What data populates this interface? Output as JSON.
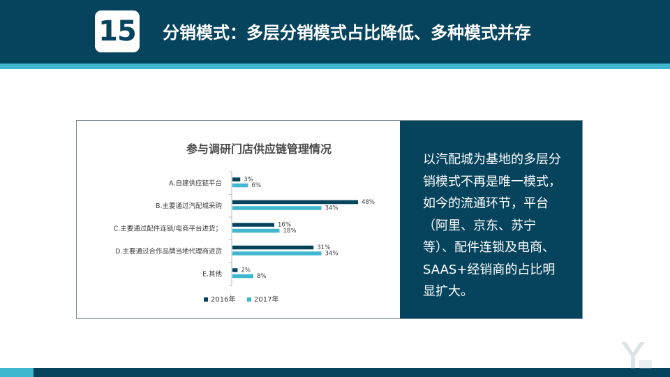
{
  "header": {
    "badge": "15",
    "title": "分销模式：多层分销模式占比降低、多种模式并存"
  },
  "summary_text": "以汽配城为基地的多层分销模式不再是唯一模式，如今的流通环节，平台（阿里、京东、苏宁等）、配件连锁及电商、SAAS+经销商的占比明显扩大。",
  "chart_data": {
    "type": "bar",
    "orientation": "horizontal",
    "title": "参与调研门店供应链管理情况",
    "categories": [
      "A.自建供应链平台",
      "B.主要通过汽配城采购",
      "C.主要通过配件连锁/电商平台进货；",
      "D.主要通过合作品牌当地代理商进货",
      "E.其他"
    ],
    "series": [
      {
        "name": "2016年",
        "values": [
          3,
          48,
          16,
          31,
          2
        ],
        "labels": [
          "3%",
          "48%",
          "16%",
          "31%",
          "2%"
        ],
        "color": "#06435c"
      },
      {
        "name": "2017年",
        "values": [
          6,
          34,
          18,
          34,
          8
        ],
        "labels": [
          "6%",
          "34%",
          "18%",
          "34%",
          "8%"
        ],
        "color": "#3fb7cf"
      }
    ],
    "unit": "%",
    "legend_position": "bottom",
    "grid": false
  },
  "colors": {
    "header": "#06435c",
    "accent": "#3fb7cf"
  }
}
